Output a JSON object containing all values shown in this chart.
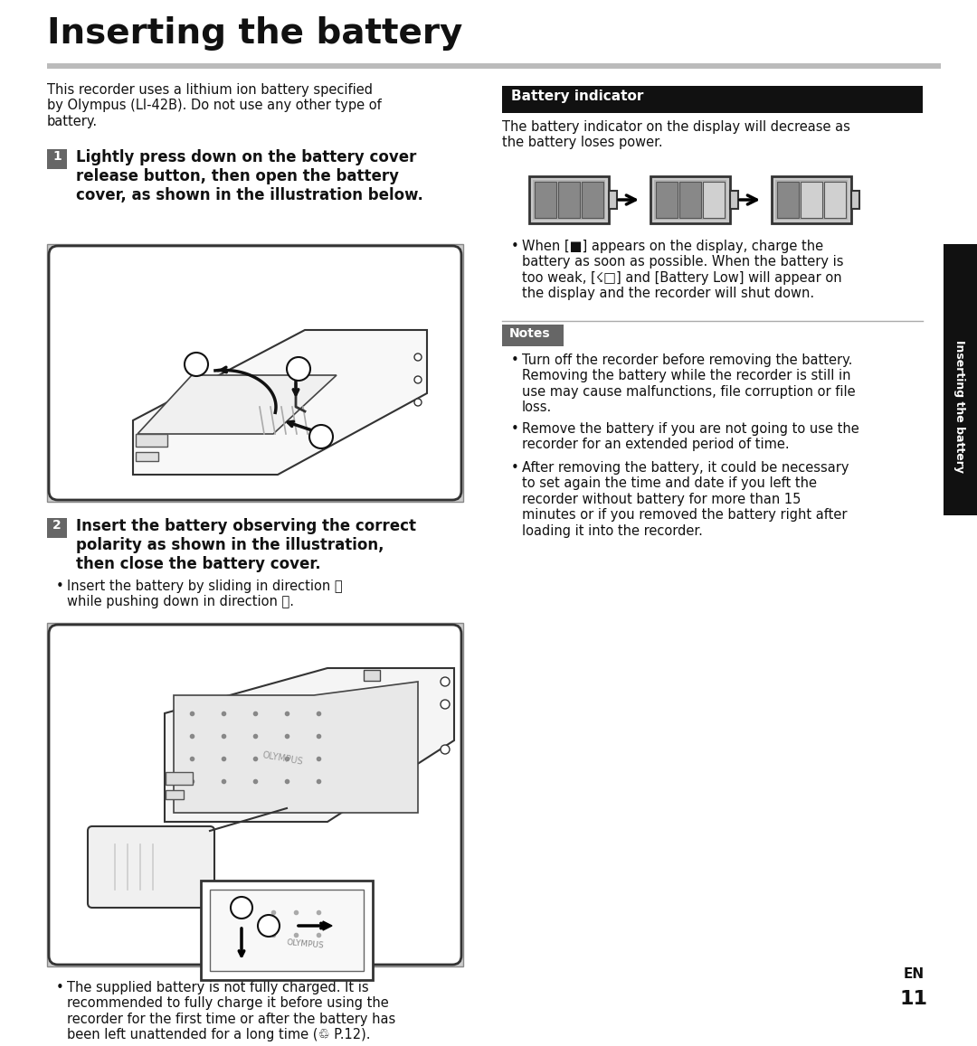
{
  "title": "Inserting the battery",
  "bg_color": "#ffffff",
  "text_color": "#1a1a1a",
  "intro_text": "This recorder uses a lithium ion battery specified\nby Olympus (LI-42B). Do not use any other type of\nbattery.",
  "step1_text": "Lightly press down on the battery cover\nrelease button, then open the battery\ncover, as shown in the illustration below.",
  "step2_text": "Insert the battery observing the correct\npolarity as shown in the illustration,\nthen close the battery cover.",
  "step2_bullet": "Insert the battery by sliding in direction Ⓐ\nwhile pushing down in direction Ⓑ.",
  "battery_indicator_header": "Battery indicator",
  "battery_indicator_body": "The battery indicator on the display will decrease as\nthe battery loses power.",
  "battery_bullet_pre": "When [",
  "battery_bullet_mid": "] appears on the display, charge the\nbattery as soon as possible. When the battery is\ntoo weak, [",
  "battery_bullet_end": "] and [Battery Low] will appear on\nthe display and the recorder will shut down.",
  "notes_header": "Notes",
  "notes_bullets": [
    "Turn off the recorder before removing the battery.\nRemoving the battery while the recorder is still in\nuse may cause malfunctions, file corruption or file\nloss.",
    "Remove the battery if you are not going to use the\nrecorder for an extended period of time.",
    "After removing the battery, it could be necessary\nto set again the time and date if you left the\nrecorder without battery for more than 15\nminutes or if you removed the battery right after\nloading it into the recorder."
  ],
  "footer_bullet": "The supplied battery is not fully charged. It is\nrecommended to fully charge it before using the\nrecorder for the first time or after the battery has\nbeen left unattended for a long time (♲ P.12).",
  "side_tab_text": "Inserting the battery",
  "page_num": "11",
  "lang_label": "EN",
  "header_bar_color": "#111111",
  "notes_bar_color": "#666666",
  "step_label_bg": "#666666",
  "step_label_color": "#ffffff",
  "image_bg": "#cccccc",
  "image_border": "#444444",
  "tab_bg": "#111111"
}
